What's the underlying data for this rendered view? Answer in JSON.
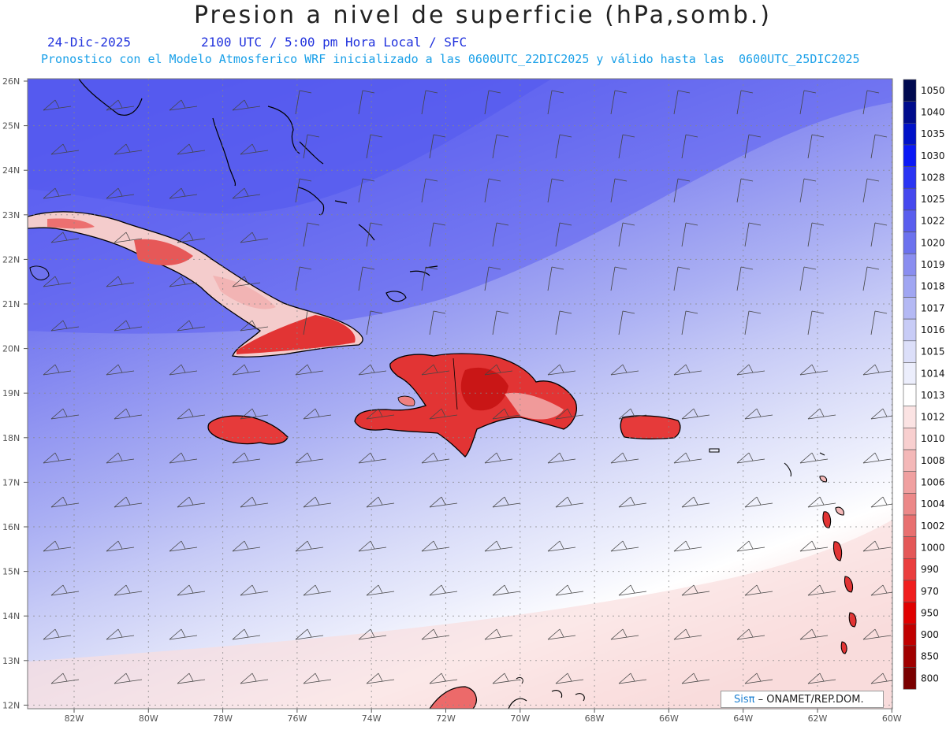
{
  "header": {
    "title": "Presion a nivel de superficie (hPa,somb.)",
    "date": "24-Dic-2025",
    "time_info": "2100 UTC / 5:00 pm Hora Local / SFC",
    "forecast_info": "Pronostico con el Modelo Atmosferico WRF inicializado a las 0600UTC_22DIC2025 y válido hasta las  0600UTC_25DIC2025"
  },
  "map": {
    "lat_labels": [
      "26N",
      "25N",
      "24N",
      "23N",
      "22N",
      "21N",
      "20N",
      "19N",
      "18N",
      "17N",
      "16N",
      "15N",
      "14N",
      "13N",
      "12N"
    ],
    "lon_labels": [
      "82W",
      "80W",
      "78W",
      "76W",
      "74W",
      "72W",
      "70W",
      "68W",
      "66W",
      "64W",
      "62W",
      "60W"
    ],
    "grid": true,
    "wind_barbs": true
  },
  "colorbar": {
    "levels": [
      "1050",
      "1040",
      "1035",
      "1030",
      "1028",
      "1025",
      "1022",
      "1020",
      "1019",
      "1018",
      "1017",
      "1016",
      "1015",
      "1014",
      "1013",
      "1012",
      "1010",
      "1008",
      "1006",
      "1004",
      "1002",
      "1000",
      "990",
      "970",
      "950",
      "900",
      "850",
      "800"
    ],
    "colors": [
      "#000a50",
      "#000c8c",
      "#0012c8",
      "#0a18f5",
      "#2a34f3",
      "#4548ee",
      "#5a5eee",
      "#6c72ee",
      "#8a8ef0",
      "#a0a6f2",
      "#b4b9f4",
      "#c8ccf6",
      "#dcdff9",
      "#eceefc",
      "#ffffff",
      "#fbe3e3",
      "#f8cfcf",
      "#f4b8b8",
      "#f0a0a0",
      "#ec8888",
      "#e87070",
      "#e45858",
      "#ea3e3e",
      "#f01e1e",
      "#e00000",
      "#c00000",
      "#a00000",
      "#7a0000"
    ]
  },
  "credit": {
    "brand": "Sisπ",
    "text": " – ONAMET/REP.DOM."
  }
}
